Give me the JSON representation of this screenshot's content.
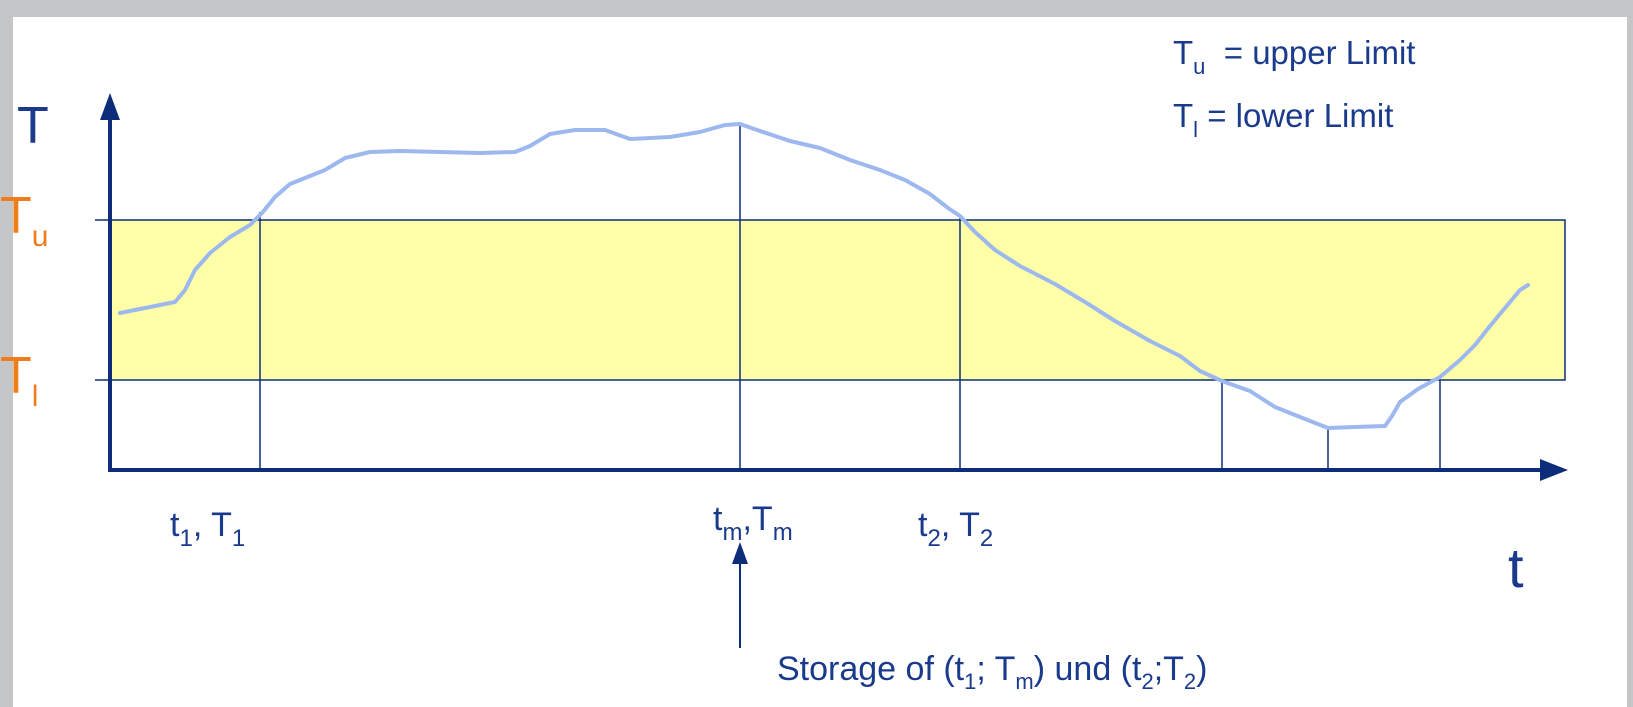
{
  "diagram": {
    "legend": {
      "upper": {
        "sym": "T",
        "sub": "u",
        "text": "  = upper Limit"
      },
      "lower": {
        "sym": "T",
        "sub": "l",
        "text": " = lower Limit"
      }
    },
    "y_axis": {
      "symbol": "T",
      "upper_tick": {
        "sym": "T",
        "sub": "u"
      },
      "lower_tick": {
        "sym": "T",
        "sub": "l"
      }
    },
    "x_axis": {
      "symbol": "t"
    },
    "point_labels": {
      "p1": {
        "a": "t",
        "a_sub": "1",
        "sep": ", ",
        "b": "T",
        "b_sub": "1"
      },
      "pm": {
        "a": "t",
        "a_sub": "m",
        "sep": ",",
        "b": "T",
        "b_sub": "m"
      },
      "p2": {
        "a": "t",
        "a_sub": "2",
        "sep": ", ",
        "b": "T",
        "b_sub": "2"
      }
    },
    "storage_note": {
      "p1": "Storage of (t",
      "s1": "1",
      "p2": "; T",
      "s2": "m",
      "p3": ") und (t",
      "s3": "2",
      "p4": ";T",
      "s4": "2",
      "p5": ")"
    },
    "colors": {
      "axis": "#0d2d7a",
      "band": "#ffffa8",
      "curve": "#9db8ee",
      "label_orange": "#f07d1c",
      "text_blue": "#1a3a8c",
      "frame": "#c4c6c8"
    }
  }
}
